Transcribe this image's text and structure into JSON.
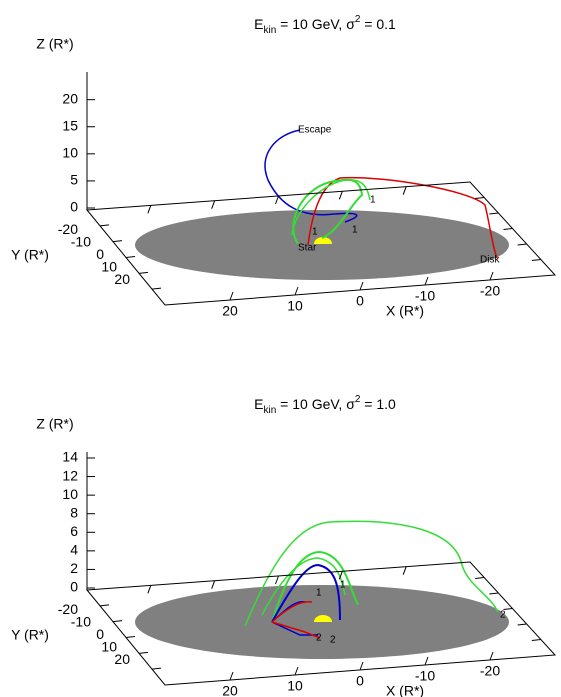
{
  "chart_data": [
    {
      "type": "line3d",
      "title": [
        "E",
        "kin",
        " = 10 GeV, σ",
        "2",
        " = 0.1"
      ],
      "zlabel": "Z (R*)",
      "xlabel": "X (R*)",
      "ylabel": "Y (R*)",
      "xlim": [
        30,
        -30
      ],
      "xticks": [
        20,
        10,
        0,
        -10,
        -20
      ],
      "ylim": [
        -30,
        30
      ],
      "yticks": [
        -20,
        -10,
        0,
        10,
        20
      ],
      "zlim": [
        0,
        24
      ],
      "zticks": [
        0,
        5,
        10,
        15,
        20
      ],
      "annotations": [
        "Escape",
        "Disk",
        "Star",
        "1",
        "1",
        "1"
      ]
    },
    {
      "type": "line3d",
      "title": [
        "E",
        "kin",
        " = 10 GeV, σ",
        "2",
        " = 1.0"
      ],
      "zlabel": "Z (R*)",
      "xlabel": "X (R*)",
      "ylabel": "Y (R*)",
      "xlim": [
        30,
        -30
      ],
      "xticks": [
        20,
        10,
        0,
        -10,
        -20
      ],
      "ylim": [
        -30,
        30
      ],
      "yticks": [
        -20,
        -10,
        0,
        10,
        20
      ],
      "zlim": [
        0,
        14
      ],
      "zticks": [
        0,
        2,
        4,
        6,
        8,
        10,
        12,
        14
      ],
      "annotations": [
        "1",
        "1",
        "2",
        "2",
        "2"
      ]
    }
  ]
}
